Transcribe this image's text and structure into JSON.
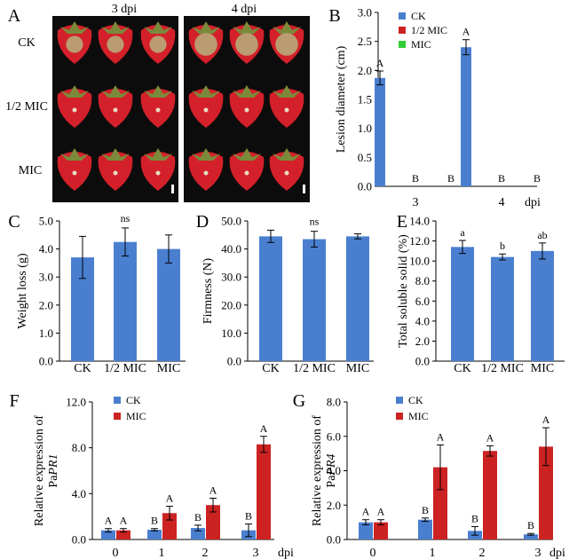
{
  "colors": {
    "ck": "#4a7fd0",
    "half_mic": "#cc2222",
    "mic": "#33cc33",
    "berry": "#d4202a",
    "photo_bg": "#0c0c0c"
  },
  "panel_A": {
    "letter": "A",
    "days": [
      "3 dpi",
      "4 dpi"
    ],
    "rows": [
      "CK",
      "1/2 MIC",
      "MIC"
    ],
    "lesion_size": [
      [
        3,
        0,
        0
      ],
      [
        4,
        0,
        0
      ]
    ]
  },
  "chart_data": [
    {
      "panel": "B",
      "type": "bar",
      "categories": [
        "3",
        "4"
      ],
      "xunit": "dpi",
      "ylabel": "Lesion diameter (cm)",
      "ylim": [
        0,
        3.0
      ],
      "yticks": [
        "0.0",
        "0.5",
        "1.0",
        "1.5",
        "2.0",
        "2.5",
        "3.0"
      ],
      "legend": "top-left",
      "series": [
        {
          "name": "CK",
          "values": [
            1.87,
            2.4
          ],
          "errors": [
            0.12,
            0.13
          ],
          "letters": [
            "A",
            "A"
          ]
        },
        {
          "name": "1/2 MIC",
          "values": [
            0,
            0
          ],
          "errors": [
            0,
            0
          ],
          "letters": [
            "B",
            "B"
          ]
        },
        {
          "name": "MIC",
          "values": [
            0,
            0
          ],
          "errors": [
            0,
            0
          ],
          "letters": [
            "B",
            "B"
          ]
        }
      ]
    },
    {
      "panel": "C",
      "type": "bar",
      "categories": [
        "CK",
        "1/2 MIC",
        "MIC"
      ],
      "ylabel": "Weight loss (g)",
      "ylim": [
        0,
        5.0
      ],
      "yticks": [
        "0.0",
        "1.0",
        "2.0",
        "3.0",
        "4.0",
        "5.0"
      ],
      "values": [
        3.7,
        4.25,
        4.0
      ],
      "errors": [
        0.75,
        0.5,
        0.5
      ],
      "annotation": "ns"
    },
    {
      "panel": "D",
      "type": "bar",
      "categories": [
        "CK",
        "1/2 MIC",
        "MIC"
      ],
      "ylabel": "Firmness (N)",
      "ylim": [
        0,
        50.0
      ],
      "yticks": [
        "0.0",
        "10.0",
        "20.0",
        "30.0",
        "40.0",
        "50.0"
      ],
      "values": [
        44.5,
        43.5,
        44.5
      ],
      "errors": [
        2.2,
        2.8,
        0.9
      ],
      "annotation": "ns"
    },
    {
      "panel": "E",
      "type": "bar",
      "categories": [
        "CK",
        "1/2 MIC",
        "MIC"
      ],
      "ylabel": "Total soluble solid (%)",
      "ylim": [
        0,
        14.0
      ],
      "yticks": [
        "0.0",
        "2.0",
        "4.0",
        "6.0",
        "8.0",
        "10.0",
        "12.0",
        "14.0"
      ],
      "values": [
        11.4,
        10.4,
        11.0
      ],
      "errors": [
        0.65,
        0.3,
        0.8
      ],
      "letters": [
        "a",
        "b",
        "ab"
      ]
    },
    {
      "panel": "F",
      "type": "bar",
      "categories": [
        "0",
        "1",
        "2",
        "3"
      ],
      "xunit": "dpi",
      "ylabel": [
        "Relative expression of",
        "Pa",
        "PR1"
      ],
      "ylim": [
        0,
        12.0
      ],
      "yticks": [
        "0.0",
        "4.0",
        "8.0",
        "12.0"
      ],
      "legend": "top-left",
      "series": [
        {
          "name": "CK",
          "values": [
            0.8,
            0.85,
            1.0,
            0.8
          ],
          "errors": [
            0.15,
            0.1,
            0.25,
            0.55
          ],
          "letters": [
            "A",
            "B",
            "B",
            "B"
          ]
        },
        {
          "name": "MIC",
          "values": [
            0.8,
            2.3,
            3.0,
            8.3
          ],
          "errors": [
            0.15,
            0.6,
            0.6,
            0.7
          ],
          "letters": [
            "A",
            "A",
            "A",
            "A"
          ]
        }
      ]
    },
    {
      "panel": "G",
      "type": "bar",
      "categories": [
        "0",
        "1",
        "2",
        "3"
      ],
      "xunit": "dpi",
      "ylabel": [
        "Relative expression of",
        "Pa",
        "PR4"
      ],
      "ylim": [
        0,
        8.0
      ],
      "yticks": [
        "0.0",
        "2.0",
        "4.0",
        "6.0",
        "8.0"
      ],
      "legend": "top-left",
      "series": [
        {
          "name": "CK",
          "values": [
            1.0,
            1.15,
            0.5,
            0.3
          ],
          "errors": [
            0.15,
            0.1,
            0.25,
            0.05
          ],
          "letters": [
            "A",
            "B",
            "B",
            "B"
          ]
        },
        {
          "name": "MIC",
          "values": [
            1.0,
            4.2,
            5.15,
            5.4
          ],
          "errors": [
            0.15,
            1.3,
            0.3,
            1.1
          ],
          "letters": [
            "A",
            "A",
            "A",
            "A"
          ]
        }
      ]
    }
  ]
}
